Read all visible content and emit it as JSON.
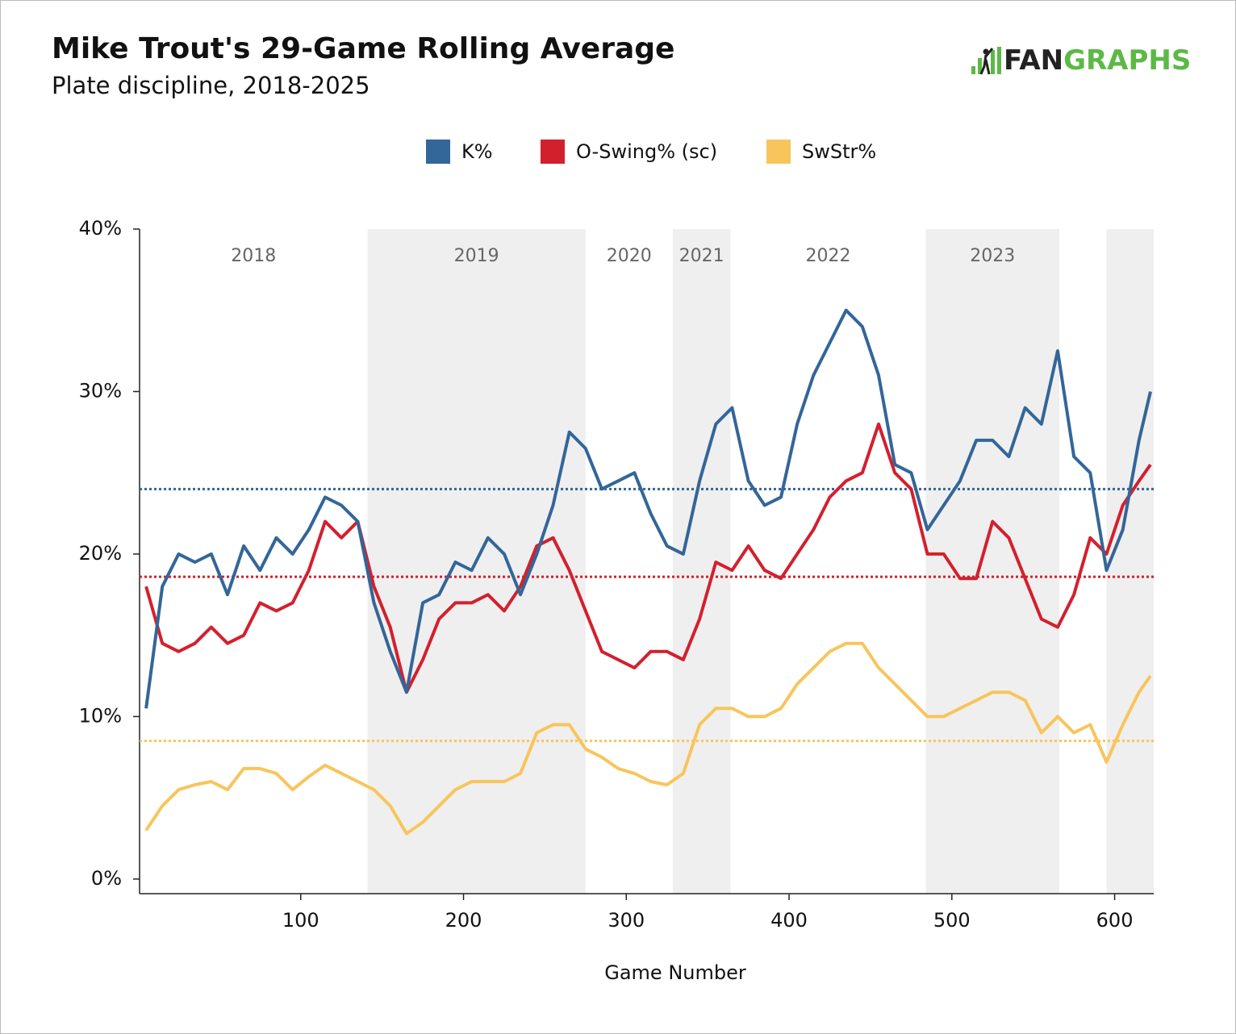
{
  "chart_data": {
    "type": "line",
    "title": "Mike Trout's 29-Game Rolling Average",
    "subtitle": "Plate discipline, 2018-2025",
    "logo": {
      "left": "FAN",
      "right": "GRAPHS"
    },
    "x_label": "Game Number",
    "legend": "top",
    "x": [
      5,
      15,
      25,
      35,
      45,
      55,
      65,
      75,
      85,
      95,
      105,
      115,
      125,
      135,
      145,
      155,
      165,
      175,
      185,
      195,
      205,
      215,
      225,
      235,
      245,
      255,
      265,
      275,
      285,
      295,
      305,
      315,
      325,
      335,
      345,
      355,
      365,
      375,
      385,
      395,
      405,
      415,
      425,
      435,
      445,
      455,
      465,
      475,
      485,
      495,
      505,
      515,
      525,
      535,
      545,
      555,
      565,
      575,
      585,
      595,
      605,
      615,
      622
    ],
    "series": [
      {
        "name": "K%",
        "color": "#336699",
        "reference": 24.0,
        "values": [
          10.5,
          18,
          20,
          19.5,
          20,
          17.5,
          20.5,
          19,
          21,
          20,
          21.5,
          23.5,
          23,
          22,
          17,
          14,
          11.5,
          17,
          17.5,
          19.5,
          19,
          21,
          20,
          17.5,
          20,
          23,
          27.5,
          26.5,
          24,
          24.5,
          25,
          22.5,
          20.5,
          20,
          24.5,
          28,
          29,
          24.5,
          23,
          23.5,
          28,
          31,
          33,
          35,
          34,
          31,
          25.5,
          25,
          21.5,
          23,
          24.5,
          27,
          27,
          26,
          29,
          28,
          32.5,
          26,
          25,
          19,
          21.5,
          27,
          30
        ]
      },
      {
        "name": "O-Swing% (sc)",
        "color": "#d3202e",
        "reference": 18.6,
        "values": [
          18,
          14.5,
          14,
          14.5,
          15.5,
          14.5,
          15,
          17,
          16.5,
          17,
          19,
          22,
          21,
          22,
          18,
          15.5,
          11.5,
          13.5,
          16,
          17,
          17,
          17.5,
          16.5,
          18,
          20.5,
          21,
          19,
          16.5,
          14,
          13.5,
          13,
          14,
          14,
          13.5,
          16,
          19.5,
          19,
          20.5,
          19,
          18.5,
          20,
          21.5,
          23.5,
          24.5,
          25,
          28,
          25,
          24,
          20,
          20,
          18.5,
          18.5,
          22,
          21,
          18.5,
          16,
          15.5,
          17.5,
          21,
          20,
          23,
          24.5,
          25.5
        ]
      },
      {
        "name": "SwStr%",
        "color": "#f8c55c",
        "reference": 8.5,
        "values": [
          3,
          4.5,
          5.5,
          5.8,
          6,
          5.5,
          6.8,
          6.8,
          6.5,
          5.5,
          6.3,
          7,
          6.5,
          6,
          5.5,
          4.5,
          2.8,
          3.5,
          4.5,
          5.5,
          6,
          6,
          6,
          6.5,
          9,
          9.5,
          9.5,
          8,
          7.5,
          6.8,
          6.5,
          6,
          5.8,
          6.5,
          9.5,
          10.5,
          10.5,
          10,
          10,
          10.5,
          12,
          13,
          14,
          14.5,
          14.5,
          13,
          12,
          11,
          10,
          10,
          10.5,
          11,
          11.5,
          11.5,
          11,
          9,
          10,
          9,
          9.5,
          7.2,
          9.5,
          11.5,
          12.5
        ]
      }
    ],
    "seasons": [
      {
        "label": "2018",
        "start": 1,
        "end": 141,
        "shaded": false
      },
      {
        "label": "2019",
        "start": 141,
        "end": 275,
        "shaded": true
      },
      {
        "label": "2020",
        "start": 275,
        "end": 328.5,
        "shaded": false
      },
      {
        "label": "2021",
        "start": 328.5,
        "end": 364,
        "shaded": true
      },
      {
        "label": "2022",
        "start": 364,
        "end": 484,
        "shaded": false
      },
      {
        "label": "2023",
        "start": 484,
        "end": 566,
        "shaded": true
      },
      {
        "label": null,
        "start": 566,
        "end": 595,
        "shaded": false
      },
      {
        "label": null,
        "start": 595,
        "end": 624,
        "shaded": true
      }
    ],
    "xlim": [
      1,
      624
    ],
    "xticks": [
      100,
      200,
      300,
      400,
      500,
      600
    ],
    "ylim": [
      -0.9,
      40
    ],
    "yticks": [
      {
        "value": 0,
        "label": "0%"
      },
      {
        "value": 10,
        "label": "10%"
      },
      {
        "value": 20,
        "label": "20%"
      },
      {
        "value": 30,
        "label": "30%"
      },
      {
        "value": 40,
        "label": "40%"
      }
    ]
  }
}
